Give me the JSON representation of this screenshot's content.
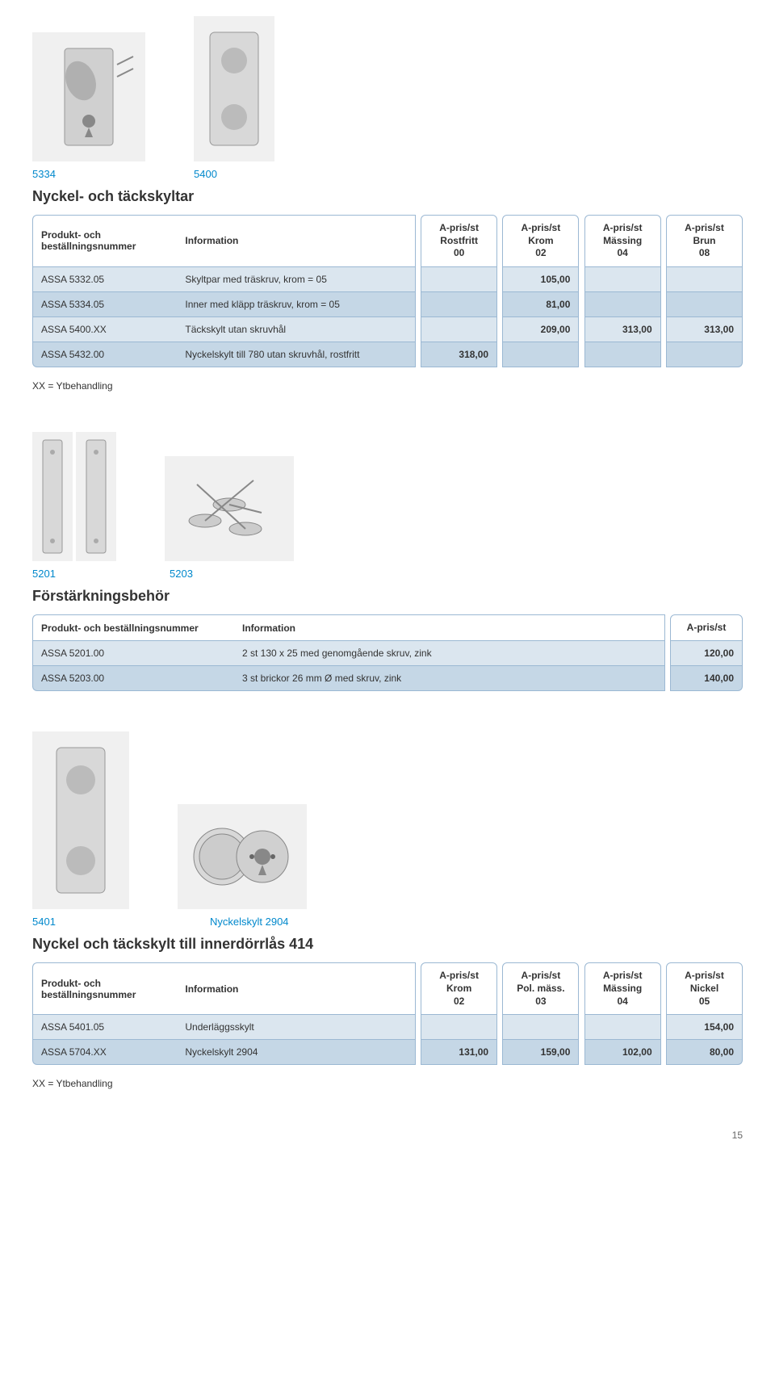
{
  "section1": {
    "labels": [
      "5334",
      "5400"
    ],
    "title": "Nyckel- och täckskyltar",
    "headers": {
      "col1": "Produkt- och beställningsnummer",
      "col2": "Information",
      "num_cols": [
        {
          "line1": "A-pris/st",
          "line2": "Rostfritt",
          "line3": "00"
        },
        {
          "line1": "A-pris/st",
          "line2": "Krom",
          "line3": "02"
        },
        {
          "line1": "A-pris/st",
          "line2": "Mässing",
          "line3": "04"
        },
        {
          "line1": "A-pris/st",
          "line2": "Brun",
          "line3": "08"
        }
      ]
    },
    "rows": [
      {
        "c1": "ASSA 5332.05",
        "c2": "Skyltpar med träskruv, krom = 05",
        "v": [
          "",
          "105,00",
          "",
          ""
        ]
      },
      {
        "c1": "ASSA 5334.05",
        "c2": "Inner med kläpp träskruv, krom = 05",
        "v": [
          "",
          "81,00",
          "",
          ""
        ]
      },
      {
        "c1": "ASSA 5400.XX",
        "c2": "Täckskylt utan skruvhål",
        "v": [
          "",
          "209,00",
          "313,00",
          "313,00"
        ]
      },
      {
        "c1": "ASSA 5432.00",
        "c2": "Nyckelskylt till 780 utan skruvhål, rostfritt",
        "v": [
          "318,00",
          "",
          "",
          ""
        ]
      }
    ],
    "footnote": "XX = Ytbehandling"
  },
  "section2": {
    "labels": [
      "5201",
      "5203"
    ],
    "title": "Förstärkningsbehör",
    "headers": {
      "col1": "Produkt- och beställningsnummer",
      "col2": "Information",
      "num_cols": [
        {
          "line1": "A-pris/st",
          "line2": "",
          "line3": ""
        }
      ]
    },
    "rows": [
      {
        "c1": "ASSA 5201.00",
        "c2": "2 st 130 x 25 med genomgående skruv, zink",
        "v": [
          "120,00"
        ]
      },
      {
        "c1": "ASSA 5203.00",
        "c2": "3 st brickor 26 mm Ø med skruv, zink",
        "v": [
          "140,00"
        ]
      }
    ]
  },
  "section3": {
    "labels": [
      "5401",
      "Nyckelskylt 2904"
    ],
    "title": "Nyckel och täckskylt till innerdörrlås 414",
    "headers": {
      "col1": "Produkt- och beställningsnummer",
      "col2": "Information",
      "num_cols": [
        {
          "line1": "A-pris/st",
          "line2": "Krom",
          "line3": "02"
        },
        {
          "line1": "A-pris/st",
          "line2": "Pol. mäss.",
          "line3": "03"
        },
        {
          "line1": "A-pris/st",
          "line2": "Mässing",
          "line3": "04"
        },
        {
          "line1": "A-pris/st",
          "line2": "Nickel",
          "line3": "05"
        }
      ]
    },
    "rows": [
      {
        "c1": "ASSA 5401.05",
        "c2": "Underläggsskylt",
        "v": [
          "",
          "",
          "",
          "154,00"
        ]
      },
      {
        "c1": "ASSA 5704.XX",
        "c2": "Nyckelskylt 2904",
        "v": [
          "131,00",
          "159,00",
          "102,00",
          "80,00"
        ]
      }
    ],
    "footnote": "XX = Ytbehandling"
  },
  "page_number": "15",
  "colors": {
    "accent": "#0088cc",
    "header_border": "#9bb8d3",
    "row_odd": "#dbe6ef",
    "row_even": "#c5d7e6",
    "text": "#333333",
    "background": "#ffffff"
  }
}
